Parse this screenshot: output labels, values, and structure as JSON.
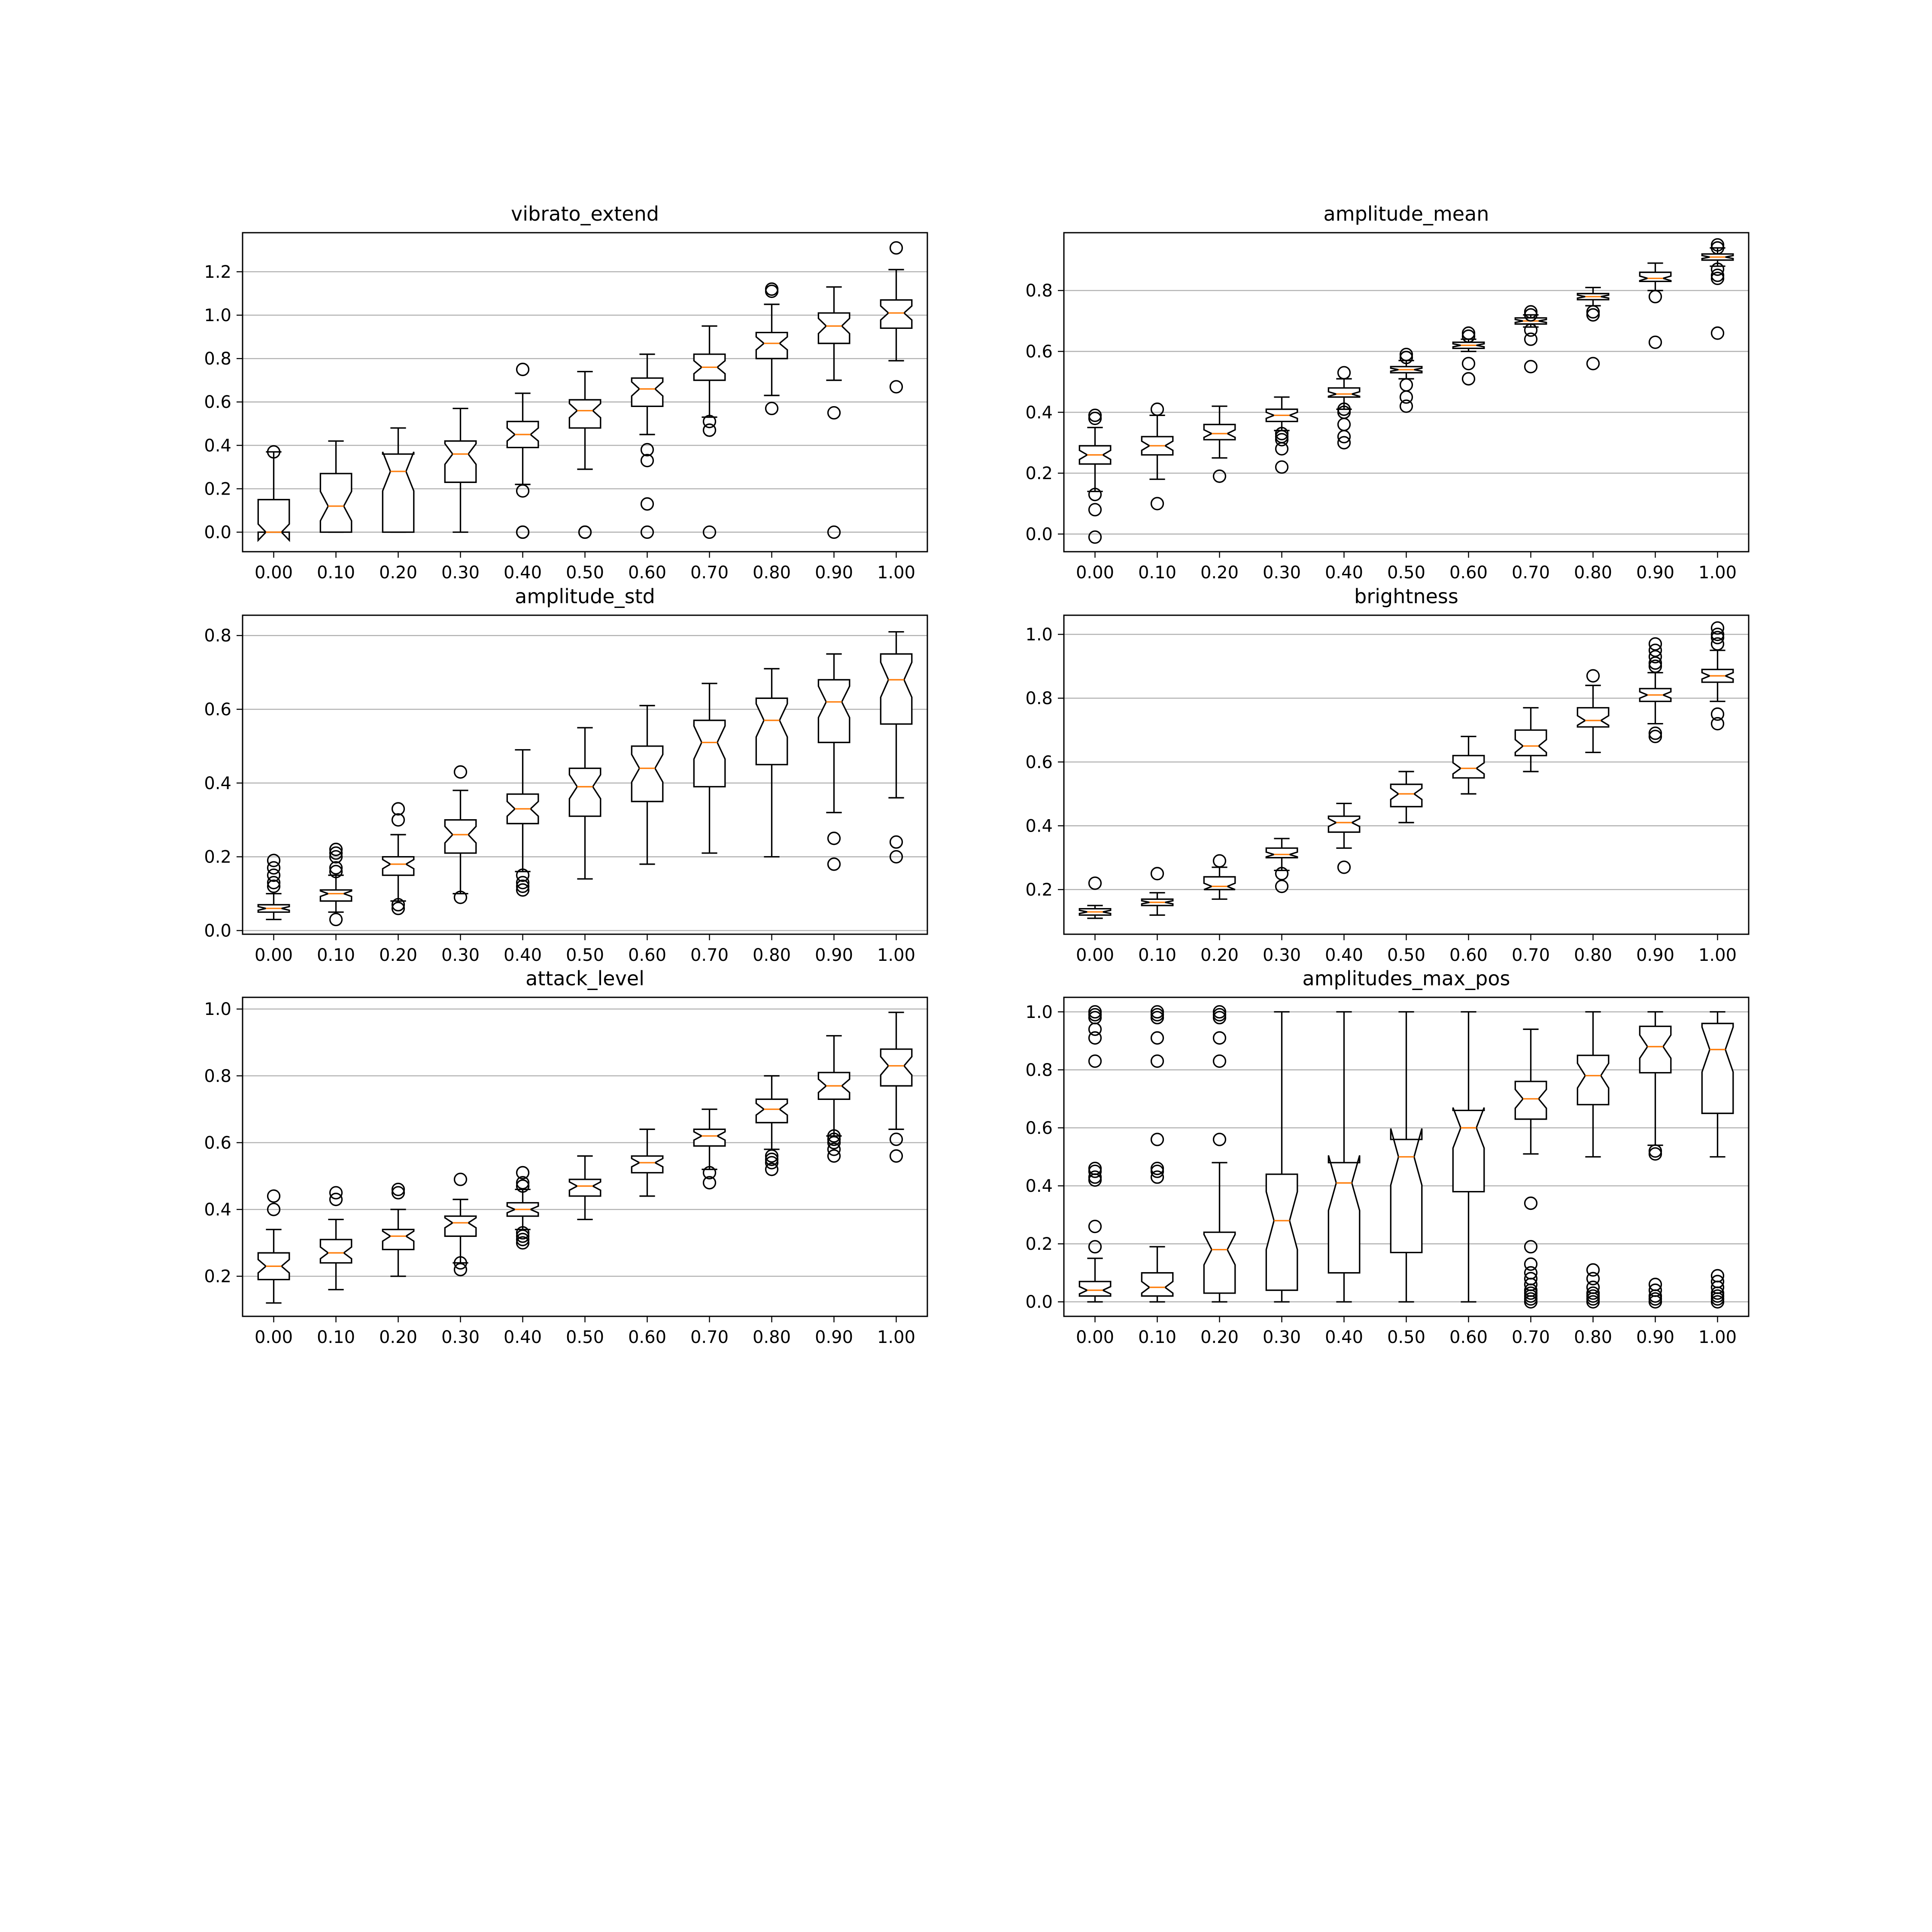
{
  "chart_data": [
    {
      "type": "box",
      "title": "vibrato_extend",
      "xlabel": "",
      "ylabel": "",
      "ylim": [
        -0.09,
        1.38
      ],
      "yticks": [
        0.0,
        0.2,
        0.4,
        0.6,
        0.8,
        1.0,
        1.2
      ],
      "ytick_labels": [
        "0.0",
        "0.2",
        "0.4",
        "0.6",
        "0.8",
        "1.0",
        "1.2"
      ],
      "grid": "y",
      "notched": true,
      "categories": [
        "0.00",
        "0.10",
        "0.20",
        "0.30",
        "0.40",
        "0.50",
        "0.60",
        "0.70",
        "0.80",
        "0.90",
        "1.00"
      ],
      "boxes": [
        {
          "whislo": 0.0,
          "q1": 0.0,
          "med": 0.0,
          "q3": 0.15,
          "whishi": 0.37,
          "fliers": [
            0.37
          ]
        },
        {
          "whislo": 0.0,
          "q1": 0.0,
          "med": 0.12,
          "q3": 0.27,
          "whishi": 0.42,
          "fliers": []
        },
        {
          "whislo": 0.0,
          "q1": 0.0,
          "med": 0.28,
          "q3": 0.36,
          "whishi": 0.48,
          "fliers": []
        },
        {
          "whislo": 0.0,
          "q1": 0.23,
          "med": 0.36,
          "q3": 0.42,
          "whishi": 0.57,
          "fliers": []
        },
        {
          "whislo": 0.22,
          "q1": 0.39,
          "med": 0.45,
          "q3": 0.51,
          "whishi": 0.64,
          "fliers": [
            0.75,
            0.19,
            0.0,
            0.0
          ]
        },
        {
          "whislo": 0.29,
          "q1": 0.48,
          "med": 0.56,
          "q3": 0.61,
          "whishi": 0.74,
          "fliers": [
            0.0,
            0.0
          ]
        },
        {
          "whislo": 0.45,
          "q1": 0.58,
          "med": 0.66,
          "q3": 0.71,
          "whishi": 0.82,
          "fliers": [
            0.38,
            0.33,
            0.13,
            0.0
          ]
        },
        {
          "whislo": 0.53,
          "q1": 0.7,
          "med": 0.76,
          "q3": 0.82,
          "whishi": 0.95,
          "fliers": [
            0.51,
            0.47,
            0.0
          ]
        },
        {
          "whislo": 0.63,
          "q1": 0.8,
          "med": 0.87,
          "q3": 0.92,
          "whishi": 1.05,
          "fliers": [
            1.12,
            1.11,
            0.57
          ]
        },
        {
          "whislo": 0.7,
          "q1": 0.87,
          "med": 0.95,
          "q3": 1.01,
          "whishi": 1.13,
          "fliers": [
            0.55,
            0.0
          ]
        },
        {
          "whislo": 0.79,
          "q1": 0.94,
          "med": 1.01,
          "q3": 1.07,
          "whishi": 1.21,
          "fliers": [
            1.31,
            0.67
          ]
        }
      ]
    },
    {
      "type": "box",
      "title": "amplitude_mean",
      "xlabel": "",
      "ylabel": "",
      "ylim": [
        -0.058,
        0.99
      ],
      "yticks": [
        0.0,
        0.2,
        0.4,
        0.6,
        0.8
      ],
      "ytick_labels": [
        "0.0",
        "0.2",
        "0.4",
        "0.6",
        "0.8"
      ],
      "grid": "y",
      "notched": true,
      "categories": [
        "0.00",
        "0.10",
        "0.20",
        "0.30",
        "0.40",
        "0.50",
        "0.60",
        "0.70",
        "0.80",
        "0.90",
        "1.00"
      ],
      "boxes": [
        {
          "whislo": 0.14,
          "q1": 0.23,
          "med": 0.26,
          "q3": 0.29,
          "whishi": 0.35,
          "fliers": [
            0.39,
            0.38,
            0.13,
            0.08,
            -0.01
          ]
        },
        {
          "whislo": 0.18,
          "q1": 0.26,
          "med": 0.29,
          "q3": 0.32,
          "whishi": 0.39,
          "fliers": [
            0.41,
            0.1
          ]
        },
        {
          "whislo": 0.25,
          "q1": 0.31,
          "med": 0.33,
          "q3": 0.36,
          "whishi": 0.42,
          "fliers": [
            0.19
          ]
        },
        {
          "whislo": 0.34,
          "q1": 0.37,
          "med": 0.39,
          "q3": 0.41,
          "whishi": 0.45,
          "fliers": [
            0.33,
            0.32,
            0.31,
            0.28,
            0.22
          ]
        },
        {
          "whislo": 0.41,
          "q1": 0.45,
          "med": 0.46,
          "q3": 0.48,
          "whishi": 0.51,
          "fliers": [
            0.53,
            0.41,
            0.4,
            0.36,
            0.32,
            0.3
          ]
        },
        {
          "whislo": 0.51,
          "q1": 0.53,
          "med": 0.54,
          "q3": 0.55,
          "whishi": 0.57,
          "fliers": [
            0.59,
            0.58,
            0.49,
            0.45,
            0.42
          ]
        },
        {
          "whislo": 0.6,
          "q1": 0.61,
          "med": 0.62,
          "q3": 0.63,
          "whishi": 0.64,
          "fliers": [
            0.66,
            0.65,
            0.56,
            0.51
          ]
        },
        {
          "whislo": 0.68,
          "q1": 0.69,
          "med": 0.7,
          "q3": 0.71,
          "whishi": 0.72,
          "fliers": [
            0.73,
            0.72,
            0.67,
            0.64,
            0.55
          ]
        },
        {
          "whislo": 0.75,
          "q1": 0.77,
          "med": 0.78,
          "q3": 0.79,
          "whishi": 0.81,
          "fliers": [
            0.73,
            0.72,
            0.56
          ]
        },
        {
          "whislo": 0.8,
          "q1": 0.83,
          "med": 0.84,
          "q3": 0.86,
          "whishi": 0.89,
          "fliers": [
            0.78,
            0.63
          ]
        },
        {
          "whislo": 0.88,
          "q1": 0.9,
          "med": 0.91,
          "q3": 0.92,
          "whishi": 0.94,
          "fliers": [
            0.95,
            0.94,
            0.87,
            0.85,
            0.84,
            0.66
          ]
        }
      ]
    },
    {
      "type": "box",
      "title": "amplitude_std",
      "xlabel": "",
      "ylabel": "",
      "ylim": [
        -0.01,
        0.855
      ],
      "yticks": [
        0.0,
        0.2,
        0.4,
        0.6,
        0.8
      ],
      "ytick_labels": [
        "0.0",
        "0.2",
        "0.4",
        "0.6",
        "0.8"
      ],
      "grid": "y",
      "notched": true,
      "categories": [
        "0.00",
        "0.10",
        "0.20",
        "0.30",
        "0.40",
        "0.50",
        "0.60",
        "0.70",
        "0.80",
        "0.90",
        "1.00"
      ],
      "boxes": [
        {
          "whislo": 0.03,
          "q1": 0.05,
          "med": 0.06,
          "q3": 0.07,
          "whishi": 0.1,
          "fliers": [
            0.19,
            0.17,
            0.15,
            0.13,
            0.12
          ]
        },
        {
          "whislo": 0.05,
          "q1": 0.08,
          "med": 0.1,
          "q3": 0.11,
          "whishi": 0.15,
          "fliers": [
            0.22,
            0.21,
            0.2,
            0.17,
            0.16,
            0.03
          ]
        },
        {
          "whislo": 0.08,
          "q1": 0.15,
          "med": 0.18,
          "q3": 0.2,
          "whishi": 0.26,
          "fliers": [
            0.33,
            0.3,
            0.07,
            0.06
          ]
        },
        {
          "whislo": 0.1,
          "q1": 0.21,
          "med": 0.26,
          "q3": 0.3,
          "whishi": 0.38,
          "fliers": [
            0.43,
            0.09
          ]
        },
        {
          "whislo": 0.16,
          "q1": 0.29,
          "med": 0.33,
          "q3": 0.37,
          "whishi": 0.49,
          "fliers": [
            0.15,
            0.13,
            0.12,
            0.11
          ]
        },
        {
          "whislo": 0.14,
          "q1": 0.31,
          "med": 0.39,
          "q3": 0.44,
          "whishi": 0.55,
          "fliers": []
        },
        {
          "whislo": 0.18,
          "q1": 0.35,
          "med": 0.44,
          "q3": 0.5,
          "whishi": 0.61,
          "fliers": []
        },
        {
          "whislo": 0.21,
          "q1": 0.39,
          "med": 0.51,
          "q3": 0.57,
          "whishi": 0.67,
          "fliers": []
        },
        {
          "whislo": 0.2,
          "q1": 0.45,
          "med": 0.57,
          "q3": 0.63,
          "whishi": 0.71,
          "fliers": []
        },
        {
          "whislo": 0.32,
          "q1": 0.51,
          "med": 0.62,
          "q3": 0.68,
          "whishi": 0.75,
          "fliers": [
            0.25,
            0.18
          ]
        },
        {
          "whislo": 0.36,
          "q1": 0.56,
          "med": 0.68,
          "q3": 0.75,
          "whishi": 0.81,
          "fliers": [
            0.24,
            0.2
          ]
        }
      ]
    },
    {
      "type": "box",
      "title": "brightness",
      "xlabel": "",
      "ylabel": "",
      "ylim": [
        0.06,
        1.06
      ],
      "yticks": [
        0.2,
        0.4,
        0.6,
        0.8,
        1.0
      ],
      "ytick_labels": [
        "0.2",
        "0.4",
        "0.6",
        "0.8",
        "1.0"
      ],
      "grid": "y",
      "notched": true,
      "categories": [
        "0.00",
        "0.10",
        "0.20",
        "0.30",
        "0.40",
        "0.50",
        "0.60",
        "0.70",
        "0.80",
        "0.90",
        "1.00"
      ],
      "boxes": [
        {
          "whislo": 0.11,
          "q1": 0.12,
          "med": 0.13,
          "q3": 0.14,
          "whishi": 0.15,
          "fliers": [
            0.22
          ]
        },
        {
          "whislo": 0.12,
          "q1": 0.15,
          "med": 0.16,
          "q3": 0.17,
          "whishi": 0.19,
          "fliers": [
            0.25
          ]
        },
        {
          "whislo": 0.17,
          "q1": 0.2,
          "med": 0.21,
          "q3": 0.24,
          "whishi": 0.27,
          "fliers": [
            0.29
          ]
        },
        {
          "whislo": 0.26,
          "q1": 0.3,
          "med": 0.31,
          "q3": 0.33,
          "whishi": 0.36,
          "fliers": [
            0.25,
            0.21
          ]
        },
        {
          "whislo": 0.33,
          "q1": 0.38,
          "med": 0.41,
          "q3": 0.43,
          "whishi": 0.47,
          "fliers": [
            0.27
          ]
        },
        {
          "whislo": 0.41,
          "q1": 0.46,
          "med": 0.5,
          "q3": 0.53,
          "whishi": 0.57,
          "fliers": []
        },
        {
          "whislo": 0.5,
          "q1": 0.55,
          "med": 0.58,
          "q3": 0.62,
          "whishi": 0.68,
          "fliers": []
        },
        {
          "whislo": 0.57,
          "q1": 0.62,
          "med": 0.65,
          "q3": 0.7,
          "whishi": 0.77,
          "fliers": []
        },
        {
          "whislo": 0.63,
          "q1": 0.71,
          "med": 0.73,
          "q3": 0.77,
          "whishi": 0.84,
          "fliers": [
            0.87
          ]
        },
        {
          "whislo": 0.72,
          "q1": 0.79,
          "med": 0.81,
          "q3": 0.83,
          "whishi": 0.88,
          "fliers": [
            0.97,
            0.95,
            0.93,
            0.91,
            0.9,
            0.69,
            0.68
          ]
        },
        {
          "whislo": 0.79,
          "q1": 0.85,
          "med": 0.87,
          "q3": 0.89,
          "whishi": 0.95,
          "fliers": [
            1.02,
            1.0,
            0.99,
            0.97,
            0.75,
            0.72
          ]
        }
      ]
    },
    {
      "type": "box",
      "title": "attack_level",
      "xlabel": "",
      "ylabel": "",
      "ylim": [
        0.08,
        1.035
      ],
      "yticks": [
        0.2,
        0.4,
        0.6,
        0.8,
        1.0
      ],
      "ytick_labels": [
        "0.2",
        "0.4",
        "0.6",
        "0.8",
        "1.0"
      ],
      "grid": "y",
      "notched": true,
      "categories": [
        "0.00",
        "0.10",
        "0.20",
        "0.30",
        "0.40",
        "0.50",
        "0.60",
        "0.70",
        "0.80",
        "0.90",
        "1.00"
      ],
      "boxes": [
        {
          "whislo": 0.12,
          "q1": 0.19,
          "med": 0.23,
          "q3": 0.27,
          "whishi": 0.34,
          "fliers": [
            0.44,
            0.4
          ]
        },
        {
          "whislo": 0.16,
          "q1": 0.24,
          "med": 0.27,
          "q3": 0.31,
          "whishi": 0.37,
          "fliers": [
            0.45,
            0.43
          ]
        },
        {
          "whislo": 0.2,
          "q1": 0.28,
          "med": 0.32,
          "q3": 0.34,
          "whishi": 0.4,
          "fliers": [
            0.46,
            0.45
          ]
        },
        {
          "whislo": 0.24,
          "q1": 0.32,
          "med": 0.36,
          "q3": 0.38,
          "whishi": 0.43,
          "fliers": [
            0.49,
            0.24,
            0.22
          ]
        },
        {
          "whislo": 0.34,
          "q1": 0.38,
          "med": 0.4,
          "q3": 0.42,
          "whishi": 0.46,
          "fliers": [
            0.51,
            0.48,
            0.47,
            0.33,
            0.32,
            0.31,
            0.3
          ]
        },
        {
          "whislo": 0.37,
          "q1": 0.44,
          "med": 0.47,
          "q3": 0.49,
          "whishi": 0.56,
          "fliers": []
        },
        {
          "whislo": 0.44,
          "q1": 0.51,
          "med": 0.54,
          "q3": 0.56,
          "whishi": 0.64,
          "fliers": []
        },
        {
          "whislo": 0.52,
          "q1": 0.59,
          "med": 0.62,
          "q3": 0.64,
          "whishi": 0.7,
          "fliers": [
            0.51,
            0.48
          ]
        },
        {
          "whislo": 0.58,
          "q1": 0.66,
          "med": 0.7,
          "q3": 0.73,
          "whishi": 0.8,
          "fliers": [
            0.56,
            0.55,
            0.54,
            0.52
          ]
        },
        {
          "whislo": 0.62,
          "q1": 0.73,
          "med": 0.77,
          "q3": 0.81,
          "whishi": 0.92,
          "fliers": [
            0.62,
            0.61,
            0.6,
            0.58,
            0.56
          ]
        },
        {
          "whislo": 0.64,
          "q1": 0.77,
          "med": 0.83,
          "q3": 0.88,
          "whishi": 0.99,
          "fliers": [
            0.61,
            0.56
          ]
        }
      ]
    },
    {
      "type": "box",
      "title": "amplitudes_max_pos",
      "xlabel": "",
      "ylabel": "",
      "ylim": [
        -0.05,
        1.05
      ],
      "yticks": [
        0.0,
        0.2,
        0.4,
        0.6,
        0.8,
        1.0
      ],
      "ytick_labels": [
        "0.0",
        "0.2",
        "0.4",
        "0.6",
        "0.8",
        "1.0"
      ],
      "grid": "y",
      "notched": true,
      "categories": [
        "0.00",
        "0.10",
        "0.20",
        "0.30",
        "0.40",
        "0.50",
        "0.60",
        "0.70",
        "0.80",
        "0.90",
        "1.00"
      ],
      "boxes": [
        {
          "whislo": 0.0,
          "q1": 0.02,
          "med": 0.04,
          "q3": 0.07,
          "whishi": 0.15,
          "fliers": [
            1.0,
            0.99,
            0.98,
            0.94,
            0.91,
            0.83,
            0.46,
            0.45,
            0.43,
            0.42,
            0.26,
            0.19
          ]
        },
        {
          "whislo": 0.0,
          "q1": 0.02,
          "med": 0.05,
          "q3": 0.1,
          "whishi": 0.19,
          "fliers": [
            1.0,
            0.99,
            0.98,
            0.91,
            0.83,
            0.56,
            0.46,
            0.45,
            0.43
          ]
        },
        {
          "whislo": 0.0,
          "q1": 0.03,
          "med": 0.18,
          "q3": 0.24,
          "whishi": 0.48,
          "fliers": [
            1.0,
            0.99,
            0.98,
            0.91,
            0.83,
            0.56
          ]
        },
        {
          "whislo": 0.0,
          "q1": 0.04,
          "med": 0.28,
          "q3": 0.44,
          "whishi": 1.0,
          "fliers": []
        },
        {
          "whislo": 0.0,
          "q1": 0.1,
          "med": 0.41,
          "q3": 0.48,
          "whishi": 1.0,
          "fliers": []
        },
        {
          "whislo": 0.0,
          "q1": 0.17,
          "med": 0.5,
          "q3": 0.56,
          "whishi": 1.0,
          "fliers": []
        },
        {
          "whislo": 0.0,
          "q1": 0.38,
          "med": 0.6,
          "q3": 0.66,
          "whishi": 1.0,
          "fliers": []
        },
        {
          "whislo": 0.51,
          "q1": 0.63,
          "med": 0.7,
          "q3": 0.76,
          "whishi": 0.94,
          "fliers": [
            0.34,
            0.19,
            0.13,
            0.1,
            0.08,
            0.06,
            0.04,
            0.03,
            0.02,
            0.01,
            0.0
          ]
        },
        {
          "whislo": 0.5,
          "q1": 0.68,
          "med": 0.78,
          "q3": 0.85,
          "whishi": 1.0,
          "fliers": [
            0.11,
            0.08,
            0.05,
            0.03,
            0.02,
            0.01,
            0.0
          ]
        },
        {
          "whislo": 0.54,
          "q1": 0.79,
          "med": 0.88,
          "q3": 0.95,
          "whishi": 1.0,
          "fliers": [
            0.52,
            0.51,
            0.06,
            0.04,
            0.02,
            0.01,
            0.0
          ]
        },
        {
          "whislo": 0.5,
          "q1": 0.65,
          "med": 0.87,
          "q3": 0.96,
          "whishi": 1.0,
          "fliers": [
            0.09,
            0.07,
            0.05,
            0.03,
            0.02,
            0.01,
            0.0
          ]
        }
      ]
    }
  ],
  "colors": {
    "box": "#000000",
    "median": "#ff7f0e",
    "grid": "#b0b0b0",
    "background": "#ffffff"
  }
}
